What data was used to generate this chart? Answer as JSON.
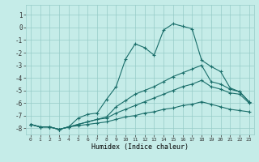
{
  "xlabel": "Humidex (Indice chaleur)",
  "bg_color": "#c5ece8",
  "grid_color": "#96ccc8",
  "line_color": "#1a6e6a",
  "xlim": [
    -0.5,
    23.5
  ],
  "ylim": [
    -8.5,
    1.8
  ],
  "yticks": [
    1,
    0,
    -1,
    -2,
    -3,
    -4,
    -5,
    -6,
    -7,
    -8
  ],
  "xticks": [
    0,
    1,
    2,
    3,
    4,
    5,
    6,
    7,
    8,
    9,
    10,
    11,
    12,
    13,
    14,
    15,
    16,
    17,
    18,
    19,
    20,
    21,
    22,
    23
  ],
  "curve1_x": [
    0,
    1,
    2,
    3,
    4,
    5,
    6,
    7,
    8,
    9,
    10,
    11,
    12,
    13,
    14,
    15,
    16,
    17,
    18,
    19,
    20,
    21,
    22,
    23
  ],
  "curve1_y": [
    -7.7,
    -7.9,
    -7.9,
    -8.1,
    -7.9,
    -7.2,
    -6.9,
    -6.8,
    -5.7,
    -4.7,
    -2.5,
    -1.3,
    -1.6,
    -2.2,
    -0.2,
    0.3,
    0.1,
    -0.1,
    -2.6,
    -3.1,
    -3.5,
    -4.8,
    -5.1,
    -5.9
  ],
  "curve2_x": [
    0,
    1,
    2,
    3,
    4,
    5,
    6,
    7,
    8,
    9,
    10,
    11,
    12,
    13,
    14,
    15,
    16,
    17,
    18,
    19,
    20,
    21,
    22,
    23
  ],
  "curve2_y": [
    -7.7,
    -7.9,
    -7.9,
    -8.1,
    -7.9,
    -7.7,
    -7.5,
    -7.3,
    -7.1,
    -6.3,
    -5.8,
    -5.3,
    -5.0,
    -4.7,
    -4.3,
    -3.9,
    -3.6,
    -3.3,
    -3.0,
    -4.3,
    -4.5,
    -4.9,
    -5.1,
    -5.9
  ],
  "curve3_x": [
    0,
    1,
    2,
    3,
    4,
    5,
    6,
    7,
    8,
    9,
    10,
    11,
    12,
    13,
    14,
    15,
    16,
    17,
    18,
    19,
    20,
    21,
    22,
    23
  ],
  "curve3_y": [
    -7.7,
    -7.9,
    -7.9,
    -8.1,
    -7.9,
    -7.7,
    -7.5,
    -7.3,
    -7.2,
    -6.8,
    -6.5,
    -6.2,
    -5.9,
    -5.6,
    -5.3,
    -5.0,
    -4.7,
    -4.5,
    -4.2,
    -4.7,
    -4.9,
    -5.2,
    -5.3,
    -6.0
  ],
  "curve4_x": [
    0,
    1,
    2,
    3,
    4,
    5,
    6,
    7,
    8,
    9,
    10,
    11,
    12,
    13,
    14,
    15,
    16,
    17,
    18,
    19,
    20,
    21,
    22,
    23
  ],
  "curve4_y": [
    -7.7,
    -7.9,
    -7.9,
    -8.1,
    -7.9,
    -7.8,
    -7.7,
    -7.6,
    -7.5,
    -7.3,
    -7.1,
    -7.0,
    -6.8,
    -6.7,
    -6.5,
    -6.4,
    -6.2,
    -6.1,
    -5.9,
    -6.1,
    -6.3,
    -6.5,
    -6.6,
    -6.7
  ]
}
